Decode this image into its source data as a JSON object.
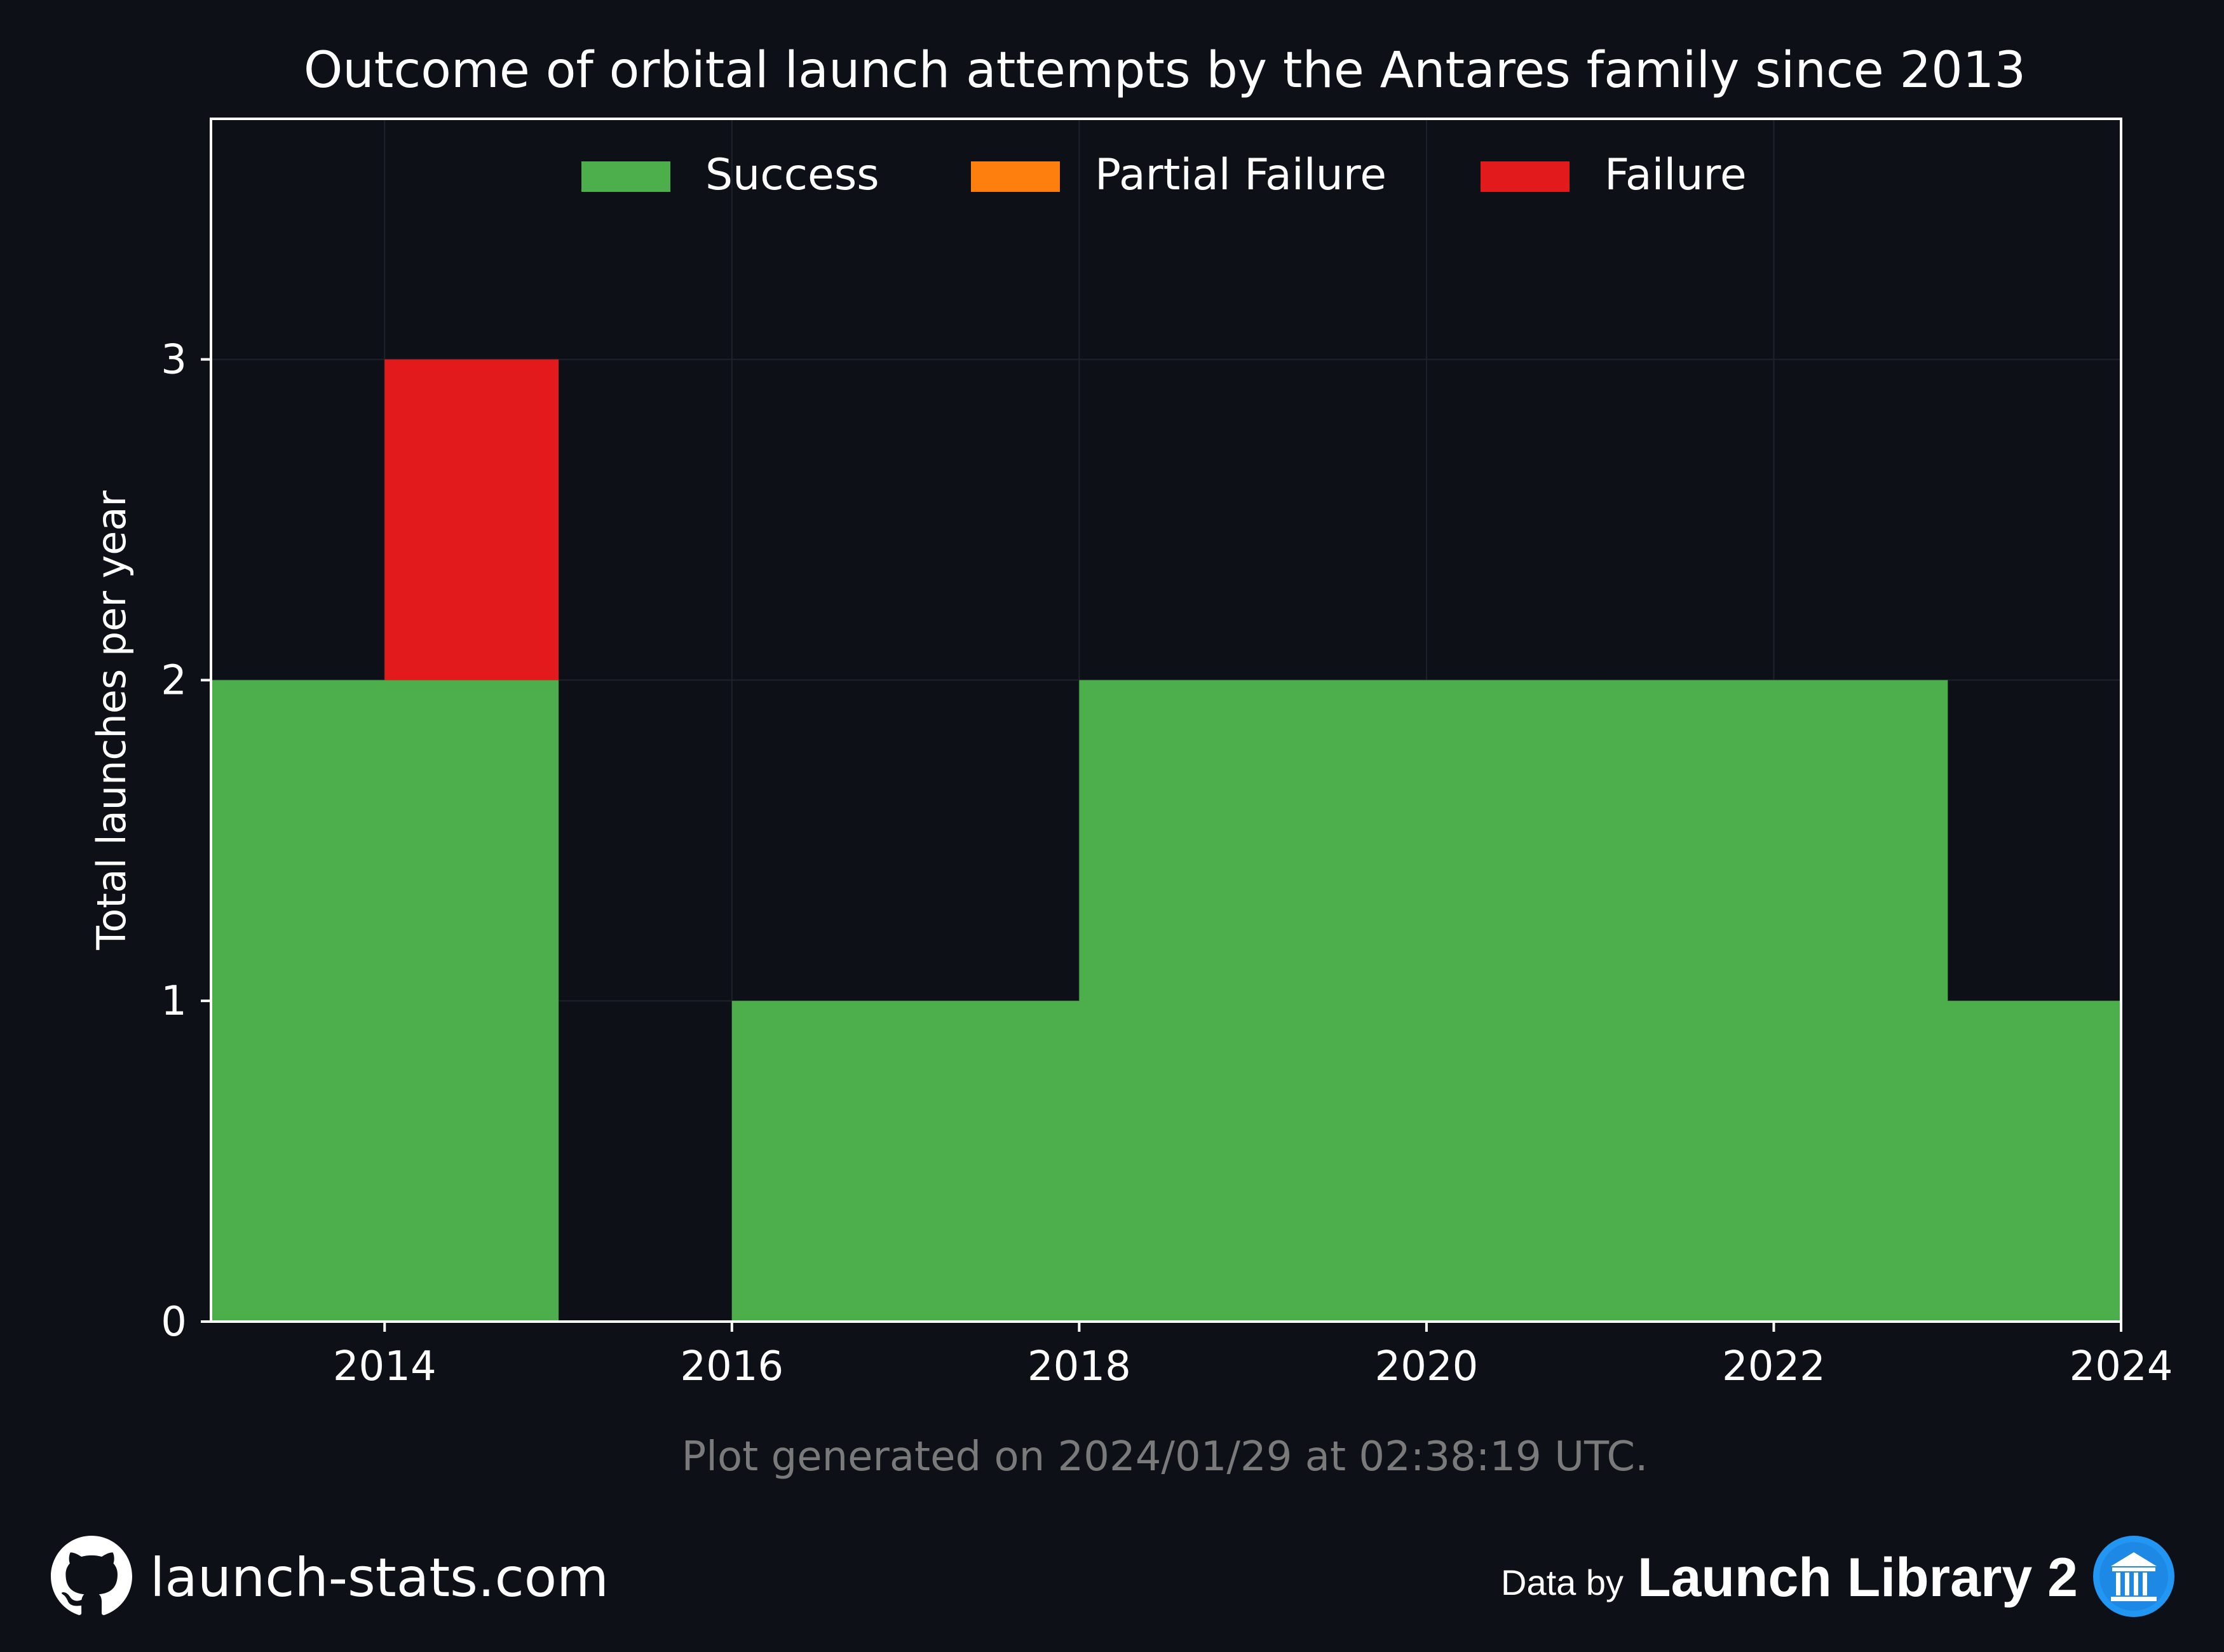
{
  "chart_data": {
    "type": "bar",
    "title": "Outcome of orbital launch attempts by the Antares family since 2013",
    "xlabel": "",
    "ylabel": "Total launches per year",
    "categories": [
      2013,
      2014,
      2015,
      2016,
      2017,
      2018,
      2019,
      2020,
      2021,
      2022,
      2023
    ],
    "series": [
      {
        "name": "Success",
        "color": "#4caf4c",
        "values": [
          2,
          2,
          0,
          1,
          1,
          2,
          2,
          2,
          2,
          2,
          1
        ]
      },
      {
        "name": "Partial Failure",
        "color": "#ff7f0e",
        "values": [
          0,
          0,
          0,
          0,
          0,
          0,
          0,
          0,
          0,
          0,
          0
        ]
      },
      {
        "name": "Failure",
        "color": "#e31a1c",
        "values": [
          0,
          1,
          0,
          0,
          0,
          0,
          0,
          0,
          0,
          0,
          0
        ]
      }
    ],
    "stacked": true,
    "xlim": [
      2013,
      2024
    ],
    "ylim": [
      0,
      3.75
    ],
    "xticks": [
      "2014",
      "2016",
      "2018",
      "2020",
      "2022",
      "2024"
    ],
    "yticks": [
      "0",
      "1",
      "2",
      "3"
    ],
    "legend": "top-center",
    "grid": true
  },
  "footnote": "Plot generated on 2024/01/29 at 02:38:19 UTC.",
  "footer": {
    "site": "launch-stats.com",
    "data_by": "Data by",
    "source": "Launch Library 2",
    "site_icon": "github-icon",
    "source_icon": "launch-library-icon"
  },
  "colors": {
    "background": "#0d1017",
    "grid": "#1e222b",
    "text": "#ffffff",
    "footnote": "#7a7a7a",
    "accent_blue": "#2196f3"
  }
}
